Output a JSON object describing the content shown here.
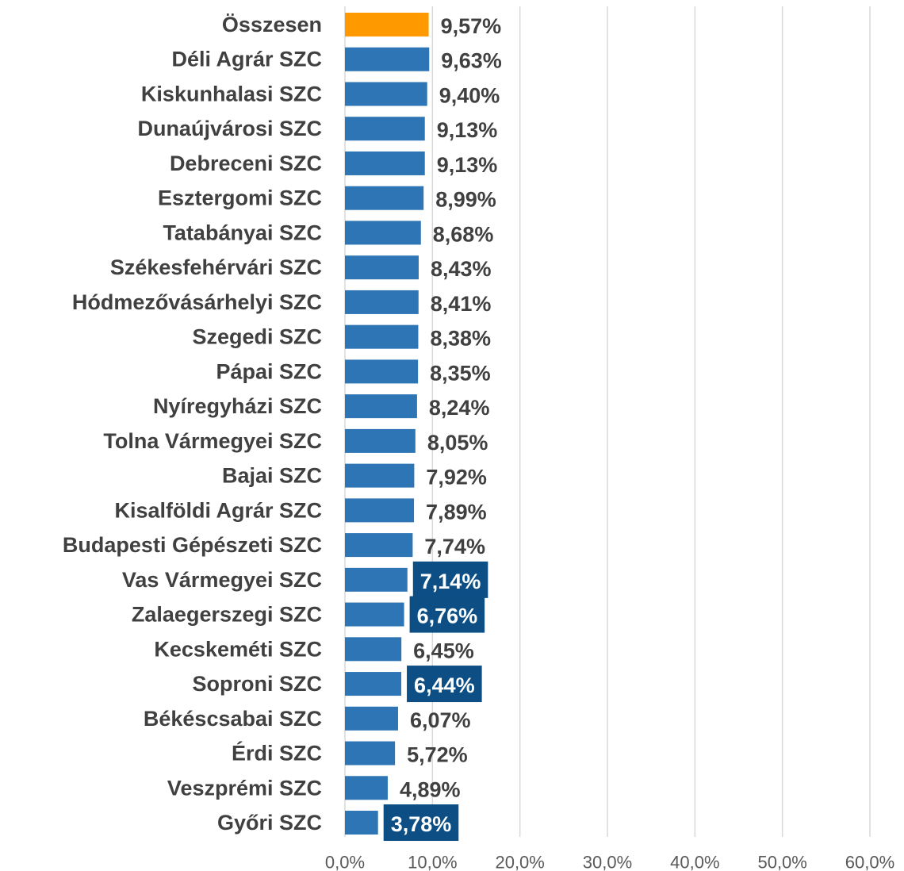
{
  "chart_data": {
    "type": "hbar",
    "categories": [
      "Összesen",
      "Déli Agrár SZC",
      "Kiskunhalasi SZC",
      "Dunaújvárosi SZC",
      "Debreceni SZC",
      "Esztergomi SZC",
      "Tatabányai SZC",
      "Székesfehérvári SZC",
      "Hódmezővásárhelyi SZC",
      "Szegedi SZC",
      "Pápai SZC",
      "Nyíregyházi SZC",
      "Tolna Vármegyei SZC",
      "Bajai SZC",
      "Kisalföldi Agrár SZC",
      "Budapesti Gépészeti SZC",
      "Vas Vármegyei SZC",
      "Zalaegerszegi SZC",
      "Kecskeméti SZC",
      "Soproni SZC",
      "Békéscsabai SZC",
      "Érdi SZC",
      "Veszprémi SZC",
      "Győri SZC"
    ],
    "values": [
      9.57,
      9.63,
      9.4,
      9.13,
      9.13,
      8.99,
      8.68,
      8.43,
      8.41,
      8.38,
      8.35,
      8.24,
      8.05,
      7.92,
      7.89,
      7.74,
      7.14,
      6.76,
      6.45,
      6.44,
      6.07,
      5.72,
      4.89,
      3.78
    ],
    "value_labels": [
      "9,57%",
      "9,63%",
      "9,40%",
      "9,13%",
      "9,13%",
      "8,99%",
      "8,68%",
      "8,43%",
      "8,41%",
      "8,38%",
      "8,35%",
      "8,24%",
      "8,05%",
      "7,92%",
      "7,89%",
      "7,74%",
      "7,14%",
      "6,76%",
      "6,45%",
      "6,44%",
      "6,07%",
      "5,72%",
      "4,89%",
      "3,78%"
    ],
    "colors": [
      "#ff9900",
      "#2e75b6",
      "#2e75b6",
      "#2e75b6",
      "#2e75b6",
      "#2e75b6",
      "#2e75b6",
      "#2e75b6",
      "#2e75b6",
      "#2e75b6",
      "#2e75b6",
      "#2e75b6",
      "#2e75b6",
      "#2e75b6",
      "#2e75b6",
      "#2e75b6",
      "#2e75b6",
      "#2e75b6",
      "#2e75b6",
      "#2e75b6",
      "#2e75b6",
      "#2e75b6",
      "#2e75b6",
      "#2e75b6"
    ],
    "label_highlight": [
      false,
      false,
      false,
      false,
      false,
      false,
      false,
      false,
      false,
      false,
      false,
      false,
      false,
      false,
      false,
      false,
      true,
      true,
      false,
      true,
      false,
      false,
      false,
      true
    ],
    "xlim": [
      0,
      60
    ],
    "xticks": [
      {
        "value": 0,
        "label": "0,0%"
      },
      {
        "value": 10,
        "label": "10,0%"
      },
      {
        "value": 20,
        "label": "20,0%"
      },
      {
        "value": 30,
        "label": "30,0%"
      },
      {
        "value": 40,
        "label": "40,0%"
      },
      {
        "value": 50,
        "label": "50,0%"
      },
      {
        "value": 60,
        "label": "60,0%"
      }
    ],
    "grid": true
  }
}
